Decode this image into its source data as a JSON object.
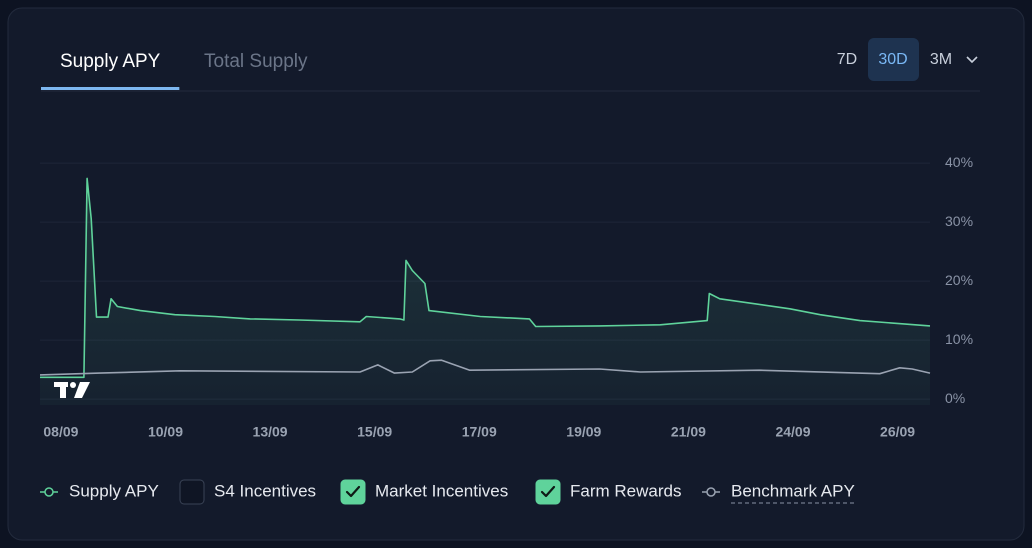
{
  "tabs": [
    "Supply APY",
    "Total Supply"
  ],
  "active_tab": 0,
  "ranges": [
    "7D",
    "30D",
    "3M"
  ],
  "active_range": 1,
  "chart_data": {
    "type": "line",
    "xlim": [
      -0.2,
      8.31
    ],
    "xticks": [
      {
        "value": 0,
        "label": "08/09"
      },
      {
        "value": 1,
        "label": "10/09"
      },
      {
        "value": 2,
        "label": "13/09"
      },
      {
        "value": 3,
        "label": "15/09"
      },
      {
        "value": 4,
        "label": "17/09"
      },
      {
        "value": 5,
        "label": "19/09"
      },
      {
        "value": 6,
        "label": "21/09"
      },
      {
        "value": 7,
        "label": "24/09"
      },
      {
        "value": 8,
        "label": "26/09"
      }
    ],
    "ylim": [
      -1,
      49
    ],
    "yticks": [
      {
        "value": 0,
        "label": "0%"
      },
      {
        "value": 10,
        "label": "10%"
      },
      {
        "value": 20,
        "label": "20%"
      },
      {
        "value": 30,
        "label": "30%"
      },
      {
        "value": 40,
        "label": "40%"
      }
    ],
    "grid": true,
    "series": [
      {
        "name": "Supply APY",
        "color": "#5fd39b",
        "fill": true,
        "x": [
          -0.2,
          0.22,
          0.25,
          0.29,
          0.34,
          0.45,
          0.48,
          0.54,
          0.76,
          1.09,
          1.47,
          1.81,
          2.28,
          2.86,
          2.92,
          3.24,
          3.28,
          3.3,
          3.36,
          3.48,
          3.52,
          4.01,
          4.48,
          4.54,
          5.15,
          5.73,
          6.18,
          6.2,
          6.3,
          6.97,
          7.26,
          7.64,
          8.31
        ],
        "values": [
          3.7,
          3.7,
          37.4,
          30.6,
          13.9,
          13.9,
          17.0,
          15.7,
          15.0,
          14.3,
          14.0,
          13.6,
          13.4,
          13.1,
          14.0,
          13.6,
          13.4,
          23.5,
          21.8,
          19.6,
          15.0,
          14.0,
          13.6,
          12.3,
          12.4,
          12.6,
          13.3,
          17.9,
          17.0,
          15.3,
          14.3,
          13.3,
          12.4
        ]
      },
      {
        "name": "Benchmark APY",
        "color": "#9aa3b2",
        "fill": false,
        "x": [
          -0.2,
          0.37,
          1.14,
          2.86,
          3.03,
          3.19,
          3.36,
          3.53,
          3.64,
          3.91,
          5.15,
          5.54,
          6.68,
          7.83,
          8.02,
          8.14,
          8.31
        ],
        "values": [
          4.1,
          4.4,
          4.8,
          4.6,
          5.8,
          4.4,
          4.6,
          6.5,
          6.6,
          4.9,
          5.1,
          4.6,
          4.9,
          4.3,
          5.3,
          5.1,
          4.4
        ]
      }
    ]
  },
  "toggles": [
    {
      "label": "S4 Incentives",
      "checked": false
    },
    {
      "label": "Market Incentives",
      "checked": true
    },
    {
      "label": "Farm Rewards",
      "checked": true
    }
  ]
}
